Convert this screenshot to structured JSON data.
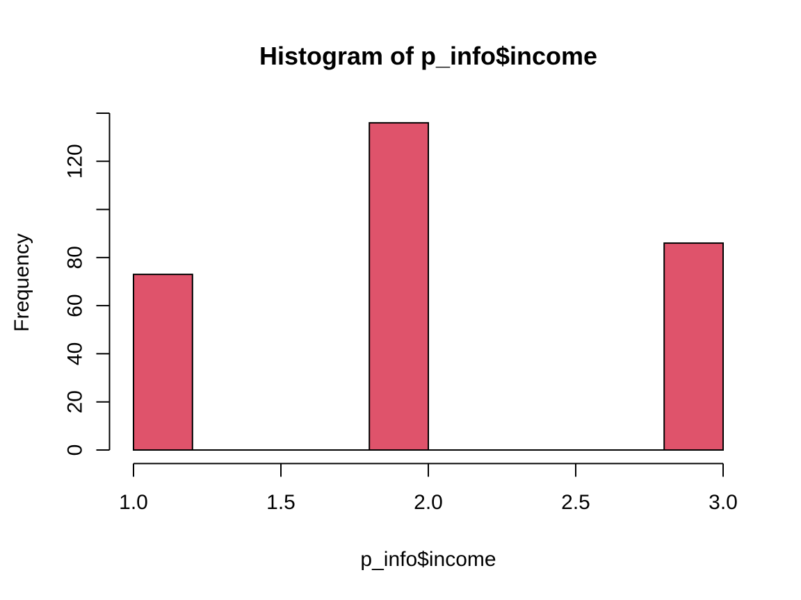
{
  "chart_data": {
    "type": "bar",
    "subtype": "histogram",
    "title": "Histogram of p_info$income",
    "xlabel": "p_info$income",
    "ylabel": "Frequency",
    "bin_width": 0.2,
    "bins": [
      {
        "x0": 1.0,
        "x1": 1.2,
        "count": 73
      },
      {
        "x0": 1.2,
        "x1": 1.4,
        "count": 0
      },
      {
        "x0": 1.4,
        "x1": 1.6,
        "count": 0
      },
      {
        "x0": 1.6,
        "x1": 1.8,
        "count": 0
      },
      {
        "x0": 1.8,
        "x1": 2.0,
        "count": 136
      },
      {
        "x0": 2.0,
        "x1": 2.2,
        "count": 0
      },
      {
        "x0": 2.2,
        "x1": 2.4,
        "count": 0
      },
      {
        "x0": 2.4,
        "x1": 2.6,
        "count": 0
      },
      {
        "x0": 2.6,
        "x1": 2.8,
        "count": 0
      },
      {
        "x0": 2.8,
        "x1": 3.0,
        "count": 86
      }
    ],
    "x_ticks": [
      {
        "value": 1.0,
        "label": "1.0"
      },
      {
        "value": 1.5,
        "label": "1.5"
      },
      {
        "value": 2.0,
        "label": "2.0"
      },
      {
        "value": 2.5,
        "label": "2.5"
      },
      {
        "value": 3.0,
        "label": "3.0"
      }
    ],
    "y_ticks": [
      {
        "value": 0,
        "label": "0"
      },
      {
        "value": 20,
        "label": "20"
      },
      {
        "value": 40,
        "label": "40"
      },
      {
        "value": 60,
        "label": "60"
      },
      {
        "value": 80,
        "label": "80"
      },
      {
        "value": 100,
        "label": ""
      },
      {
        "value": 120,
        "label": "120"
      },
      {
        "value": 140,
        "label": ""
      }
    ],
    "xlim": [
      1.0,
      3.0
    ],
    "ylim": [
      0,
      140
    ],
    "grid": false,
    "legend": null,
    "colors": {
      "bar_fill": "#DF536B",
      "bar_border": "#000000",
      "axis": "#000000",
      "text": "#000000",
      "background": "#FFFFFF"
    }
  }
}
